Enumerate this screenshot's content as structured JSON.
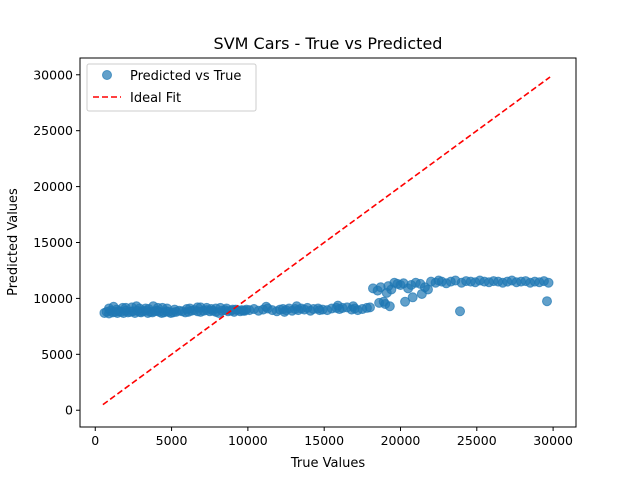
{
  "chart_data": {
    "type": "scatter",
    "title": "SVM Cars - True vs Predicted",
    "xlabel": "True Values",
    "ylabel": "Predicted Values",
    "xlim": [
      -1000,
      31500
    ],
    "ylim": [
      -1500,
      31500
    ],
    "xticks": [
      0,
      5000,
      10000,
      15000,
      20000,
      25000,
      30000
    ],
    "yticks": [
      0,
      5000,
      10000,
      15000,
      20000,
      25000,
      30000
    ],
    "x_tick_labels": [
      "0",
      "5000",
      "10000",
      "15000",
      "20000",
      "25000",
      "30000"
    ],
    "y_tick_labels": [
      "0",
      "5000",
      "10000",
      "15000",
      "20000",
      "25000",
      "30000"
    ],
    "grid": false,
    "legend_position": "top-left",
    "series": [
      {
        "name": "Predicted vs True",
        "kind": "scatter",
        "color": "#1f77b4",
        "x": [
          600,
          750,
          900,
          1000,
          1150,
          1300,
          1450,
          1550,
          1700,
          1850,
          2000,
          2150,
          2300,
          2450,
          2600,
          2750,
          2900,
          3000,
          3150,
          3300,
          3450,
          3600,
          3750,
          3900,
          4050,
          4200,
          4350,
          4500,
          4650,
          4800,
          4950,
          5100,
          5300,
          5500,
          5700,
          5900,
          6100,
          6300,
          6500,
          6700,
          6900,
          7100,
          7300,
          7500,
          7700,
          7900,
          8100,
          8300,
          8500,
          8700,
          8900,
          9100,
          9300,
          9500,
          9700,
          9900,
          900,
          1400,
          1800,
          2400,
          2900,
          3500,
          4100,
          4700,
          5200,
          6200,
          6700,
          7300,
          7900,
          8600,
          9200,
          9800,
          1200,
          2000,
          2700,
          3300,
          3800,
          4400,
          6000,
          6900,
          7600,
          8200,
          9000,
          9600,
          10100,
          10400,
          10700,
          11000,
          11300,
          11600,
          11900,
          12100,
          12300,
          12500,
          12700,
          12900,
          13100,
          13300,
          13500,
          13700,
          13900,
          14100,
          14300,
          14600,
          14900,
          15200,
          15500,
          15800,
          16000,
          16200,
          16500,
          16800,
          17000,
          17200,
          17500,
          17800,
          18000,
          11200,
          12400,
          13200,
          14700,
          15900,
          16900,
          18200,
          18500,
          18700,
          18900,
          19100,
          19200,
          19400,
          19600,
          19800,
          20000,
          20200,
          20500,
          20700,
          21000,
          21300,
          21600,
          21800,
          22000,
          18600,
          19000,
          19300,
          20300,
          20800,
          21400,
          22300,
          22500,
          22700,
          23000,
          23300,
          23600,
          24000,
          24300,
          24600,
          24900,
          25200,
          25500,
          25800,
          26100,
          26400,
          26700,
          27000,
          27300,
          27600,
          27900,
          28200,
          28500,
          28800,
          29100,
          29400,
          29700,
          23900,
          29600
        ],
        "y": [
          8700,
          8800,
          8650,
          8900,
          8750,
          8800,
          8700,
          8850,
          8800,
          8700,
          8900,
          8750,
          8800,
          8850,
          8700,
          8900,
          8800,
          8750,
          8850,
          8900,
          8700,
          8800,
          8750,
          8850,
          8900,
          8800,
          8700,
          8750,
          8850,
          8800,
          8700,
          8750,
          8800,
          8900,
          8850,
          8750,
          8800,
          8900,
          8950,
          8850,
          8800,
          8900,
          8950,
          8850,
          8900,
          8800,
          8700,
          8900,
          8950,
          8850,
          8900,
          8800,
          8950,
          8850,
          8900,
          9000,
          9100,
          9000,
          9150,
          9200,
          9100,
          9050,
          9150,
          9100,
          9000,
          9100,
          9200,
          9150,
          9100,
          9100,
          9000,
          8900,
          9250,
          9150,
          9300,
          9100,
          9300,
          9150,
          9050,
          9200,
          9050,
          9150,
          9000,
          8950,
          8950,
          9050,
          8900,
          9000,
          9100,
          8950,
          8850,
          9000,
          9050,
          8950,
          9100,
          8900,
          9050,
          8950,
          9100,
          9000,
          9150,
          8900,
          9050,
          9100,
          9000,
          8950,
          9100,
          9150,
          9050,
          9150,
          9200,
          9000,
          9100,
          8950,
          9050,
          9150,
          9200,
          9250,
          8800,
          9300,
          8950,
          9350,
          9300,
          10900,
          10700,
          11000,
          9700,
          10500,
          11100,
          10800,
          11400,
          11300,
          11200,
          11350,
          10900,
          11200,
          11400,
          11300,
          11000,
          10800,
          11500,
          9600,
          9500,
          9300,
          9700,
          10100,
          10400,
          11400,
          11600,
          11500,
          11350,
          11500,
          11600,
          11400,
          11550,
          11500,
          11450,
          11600,
          11500,
          11450,
          11550,
          11500,
          11400,
          11500,
          11600,
          11450,
          11500,
          11550,
          11400,
          11500,
          11450,
          11550,
          11400,
          8850,
          9750
        ]
      },
      {
        "name": "Ideal Fit",
        "kind": "line",
        "color": "#ff0000",
        "dash": "dashed",
        "x": [
          500,
          29800
        ],
        "y": [
          500,
          29800
        ]
      }
    ]
  }
}
